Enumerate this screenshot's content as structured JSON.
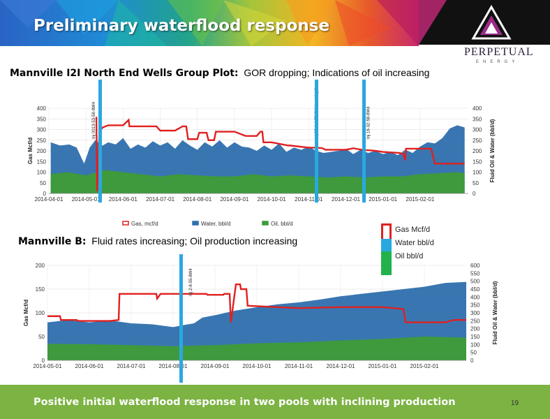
{
  "slide": {
    "title": "Preliminary waterflood response",
    "footer": "Positive initial waterflood response in two pools with inclining production",
    "page_number": "19",
    "logo": {
      "name": "PERPETUAL",
      "sub": "ENERGY"
    },
    "colors": {
      "footer": "#7cb342",
      "gas": "#e0201f",
      "water": "#2e6fad",
      "oil": "#3e9a3c",
      "marker": "#29a8e0"
    }
  },
  "captions": {
    "top_bold": "Mannville I2I North End Wells Group Plot:",
    "top_text": "GOR dropping; Indications of oil increasing",
    "bottom_bold": "Mannville B:",
    "bottom_text": "Fluid rates increasing; Oil production increasing"
  },
  "legend_side": {
    "gas": "Gas Mcf/d",
    "water": "Water  bbl/d",
    "oil": "Oil  bbl/d"
  },
  "chart_data": [
    {
      "type": "area",
      "ylabel": "Gas Mcf/d",
      "y2label": "Fluid Oil & Water (bbl/d)",
      "ylim": [
        0,
        400
      ],
      "yticks": [
        "0",
        "50",
        "100",
        "150",
        "200",
        "250",
        "300",
        "350",
        "400"
      ],
      "y2ticks": [
        "0",
        "50",
        "100",
        "150",
        "200",
        "250",
        "300",
        "350",
        "400"
      ],
      "xticks": [
        "2014-04-01",
        "2014-05-01",
        "2014-06-01",
        "2014-07-01",
        "2014-08-01",
        "2014-09-01",
        "2014-10-01",
        "2014-11-01",
        "2014-12-01",
        "2015-01-01",
        "2015-02-01"
      ],
      "x_range": [
        0,
        11.3
      ],
      "grid": true,
      "legend": [
        "Gas, mcf/d",
        "Water, bbl/d",
        "Oil, bbl/d"
      ],
      "legend_position": "bottom",
      "annotations": [
        {
          "label": "Inj 0013-53-58-8W4",
          "x": 1.35
        },
        {
          "label": "Inj 03-4-4-53-8W4 and inj 8-4-53-8W4",
          "x": 7.35
        },
        {
          "label": "Inj 16-32-58-8W4",
          "x": 8.75
        }
      ],
      "series": [
        {
          "name": "Gas, mcf/d",
          "x": [
            0.2,
            1.1,
            1.28,
            1.3,
            1.33,
            1.36,
            1.45,
            1.6,
            2.0,
            2.15,
            2.17,
            2.9,
            3.0,
            3.4,
            3.6,
            3.7,
            3.75,
            4.0,
            4.05,
            4.25,
            4.3,
            4.45,
            4.5,
            5.0,
            5.3,
            5.6,
            5.7,
            5.75,
            5.78,
            6.0,
            6.45,
            6.5,
            7.0,
            7.2,
            7.35,
            7.4,
            7.45,
            8.0,
            8.2,
            8.5,
            8.6,
            8.8,
            9.0,
            9.45,
            9.55,
            9.6,
            9.62,
            9.7,
            10.3,
            10.4,
            11.0,
            11.2
          ],
          "y": [
            null,
            null,
            360,
            10,
            120,
            290,
            310,
            320,
            320,
            345,
            315,
            315,
            295,
            295,
            315,
            315,
            255,
            255,
            285,
            285,
            250,
            250,
            290,
            290,
            270,
            270,
            290,
            290,
            240,
            240,
            225,
            225,
            215,
            215,
            213,
            210,
            205,
            205,
            212,
            203,
            203,
            200,
            195,
            190,
            185,
            155,
            210,
            210,
            210,
            140,
            140,
            140
          ]
        },
        {
          "name": "Water, bbl/d",
          "x": [
            0.05,
            0.3,
            0.55,
            0.75,
            0.95,
            1.1,
            1.25,
            1.45,
            1.6,
            1.8,
            2.0,
            2.2,
            2.4,
            2.6,
            2.8,
            3.0,
            3.2,
            3.4,
            3.6,
            3.8,
            4.0,
            4.2,
            4.4,
            4.6,
            4.8,
            5.0,
            5.2,
            5.4,
            5.6,
            5.8,
            6.0,
            6.2,
            6.4,
            6.6,
            6.8,
            7.0,
            7.2,
            7.4,
            7.6,
            7.8,
            8.0,
            8.2,
            8.4,
            8.6,
            8.8,
            9.0,
            9.2,
            9.4,
            9.6,
            9.8,
            10.0,
            10.2,
            10.4,
            10.6,
            10.8,
            11.0,
            11.2
          ],
          "y": [
            240,
            225,
            230,
            215,
            140,
            215,
            250,
            225,
            240,
            230,
            260,
            210,
            230,
            215,
            245,
            225,
            240,
            210,
            250,
            225,
            205,
            240,
            220,
            250,
            215,
            240,
            220,
            215,
            200,
            225,
            205,
            235,
            195,
            215,
            205,
            220,
            200,
            190,
            195,
            200,
            210,
            185,
            205,
            190,
            200,
            185,
            195,
            180,
            205,
            190,
            220,
            240,
            235,
            260,
            305,
            320,
            310
          ]
        },
        {
          "name": "Oil, bbl/d",
          "x": [
            0.05,
            0.5,
            1.0,
            1.5,
            2.0,
            2.5,
            3.0,
            3.5,
            4.0,
            4.5,
            5.0,
            5.5,
            6.0,
            6.5,
            7.0,
            7.5,
            8.0,
            8.5,
            9.0,
            9.5,
            10.0,
            10.5,
            11.0,
            11.2
          ],
          "y": [
            90,
            100,
            85,
            110,
            100,
            90,
            80,
            90,
            85,
            80,
            80,
            90,
            80,
            85,
            80,
            75,
            80,
            75,
            80,
            80,
            90,
            95,
            100,
            95
          ]
        }
      ]
    },
    {
      "type": "area",
      "ylabel": "Gas Mcf/d",
      "y2label": "Fluid Oil & Water (bbl/d)",
      "ylim": [
        0,
        200
      ],
      "yticks": [
        "0",
        "50",
        "100",
        "150",
        "200"
      ],
      "y2ticks": [
        "0",
        "50",
        "100",
        "150",
        "200",
        "250",
        "300",
        "350",
        "400",
        "450",
        "500",
        "550",
        "600"
      ],
      "xticks": [
        "2014-05-01",
        "2014-06-01",
        "2014-07-01",
        "2014-08-01",
        "2014-09-01",
        "2014-10-01",
        "2014-11-01",
        "2014-12-01",
        "2015-01-01",
        "2015-02-01"
      ],
      "x_range": [
        0,
        10
      ],
      "grid": true,
      "annotations": [
        {
          "label": "Inj 2-8-55-8W4",
          "x": 3.55
        }
      ],
      "series": [
        {
          "name": "Gas Mcf/d",
          "x": [
            0,
            0.3,
            0.32,
            0.7,
            0.72,
            1.5,
            1.7,
            1.72,
            2.6,
            2.62,
            2.7,
            2.72,
            3.8,
            3.82,
            4.2,
            4.22,
            4.35,
            4.38,
            4.5,
            4.6,
            4.62,
            4.75,
            4.78,
            6.0,
            7.0,
            8.0,
            8.5,
            8.55,
            9.5,
            9.7,
            10.0
          ],
          "y": [
            93,
            93,
            85,
            85,
            83,
            83,
            85,
            140,
            140,
            130,
            140,
            140,
            140,
            138,
            138,
            140,
            140,
            80,
            160,
            160,
            150,
            150,
            115,
            110,
            112,
            112,
            108,
            80,
            80,
            85,
            85
          ]
        },
        {
          "name": "Water bbl/d",
          "x": [
            0,
            0.5,
            1.0,
            1.5,
            2.0,
            2.5,
            3.0,
            3.3,
            3.5,
            3.7,
            4.0,
            4.5,
            5.0,
            5.5,
            6.0,
            6.5,
            7.0,
            7.5,
            8.0,
            8.5,
            9.0,
            9.5,
            10.0
          ],
          "y": [
            80,
            85,
            80,
            84,
            78,
            76,
            70,
            75,
            78,
            90,
            95,
            105,
            112,
            118,
            122,
            128,
            135,
            140,
            145,
            150,
            155,
            163,
            165
          ]
        },
        {
          "name": "Oil bbl/d",
          "x": [
            0,
            1.0,
            2.0,
            3.0,
            3.5,
            4.0,
            5.0,
            6.0,
            7.0,
            8.0,
            9.0,
            10.0
          ],
          "y": [
            35,
            34,
            32,
            30,
            31,
            32,
            36,
            38,
            42,
            45,
            50,
            48
          ]
        }
      ]
    }
  ]
}
